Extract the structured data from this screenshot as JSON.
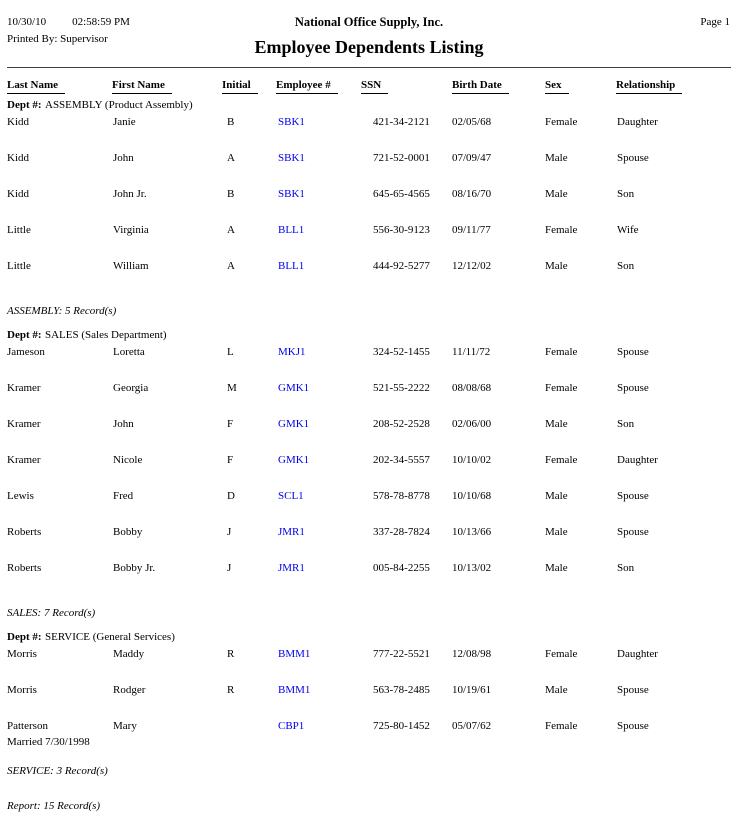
{
  "report_header": {
    "date": "10/30/10",
    "time": "02:58:59 PM",
    "company": "National Office Supply, Inc.",
    "page_label": "Page 1",
    "printed_by_label": "Printed By:",
    "printed_by_value": "Supervisor",
    "title": "Employee Dependents Listing"
  },
  "columns": [
    "Last Name",
    "First Name",
    "Initial",
    "Employee #",
    "SSN",
    "Birth Date",
    "Sex",
    "Relationship"
  ],
  "dept_label": "Dept #:",
  "groups": [
    {
      "dept_name": "ASSEMBLY (Product Assembly)",
      "summary": "ASSEMBLY: 5 Record(s)",
      "rows": [
        {
          "last_name": "Kidd",
          "first_name": "Janie",
          "initial": "B",
          "employee_no": "SBK1",
          "ssn": "421-34-2121",
          "birth_date": "02/05/68",
          "sex": "Female",
          "relationship": "Daughter"
        },
        {
          "last_name": "Kidd",
          "first_name": "John",
          "initial": "A",
          "employee_no": "SBK1",
          "ssn": "721-52-0001",
          "birth_date": "07/09/47",
          "sex": "Male",
          "relationship": "Spouse"
        },
        {
          "last_name": "Kidd",
          "first_name": "John Jr.",
          "initial": "B",
          "employee_no": "SBK1",
          "ssn": "645-65-4565",
          "birth_date": "08/16/70",
          "sex": "Male",
          "relationship": "Son"
        },
        {
          "last_name": "Little",
          "first_name": "Virginia",
          "initial": "A",
          "employee_no": "BLL1",
          "ssn": "556-30-9123",
          "birth_date": "09/11/77",
          "sex": "Female",
          "relationship": "Wife"
        },
        {
          "last_name": "Little",
          "first_name": "William",
          "initial": "A",
          "employee_no": "BLL1",
          "ssn": "444-92-5277",
          "birth_date": "12/12/02",
          "sex": "Male",
          "relationship": "Son"
        }
      ]
    },
    {
      "dept_name": "SALES (Sales Department)",
      "summary": "SALES: 7 Record(s)",
      "rows": [
        {
          "last_name": "Jameson",
          "first_name": "Loretta",
          "initial": "L",
          "employee_no": "MKJ1",
          "ssn": "324-52-1455",
          "birth_date": "11/11/72",
          "sex": "Female",
          "relationship": "Spouse"
        },
        {
          "last_name": "Kramer",
          "first_name": "Georgia",
          "initial": "M",
          "employee_no": "GMK1",
          "ssn": "521-55-2222",
          "birth_date": "08/08/68",
          "sex": "Female",
          "relationship": "Spouse"
        },
        {
          "last_name": "Kramer",
          "first_name": "John",
          "initial": "F",
          "employee_no": "GMK1",
          "ssn": "208-52-2528",
          "birth_date": "02/06/00",
          "sex": "Male",
          "relationship": "Son"
        },
        {
          "last_name": "Kramer",
          "first_name": "Nicole",
          "initial": "F",
          "employee_no": "GMK1",
          "ssn": "202-34-5557",
          "birth_date": "10/10/02",
          "sex": "Female",
          "relationship": "Daughter"
        },
        {
          "last_name": "Lewis",
          "first_name": "Fred",
          "initial": "D",
          "employee_no": "SCL1",
          "ssn": "578-78-8778",
          "birth_date": "10/10/68",
          "sex": "Male",
          "relationship": "Spouse"
        },
        {
          "last_name": "Roberts",
          "first_name": "Bobby",
          "initial": "J",
          "employee_no": "JMR1",
          "ssn": "337-28-7824",
          "birth_date": "10/13/66",
          "sex": "Male",
          "relationship": "Spouse"
        },
        {
          "last_name": "Roberts",
          "first_name": "Bobby Jr.",
          "initial": "J",
          "employee_no": "JMR1",
          "ssn": "005-84-2255",
          "birth_date": "10/13/02",
          "sex": "Male",
          "relationship": "Son"
        }
      ]
    },
    {
      "dept_name": "SERVICE (General Services)",
      "summary": "SERVICE: 3 Record(s)",
      "rows": [
        {
          "last_name": "Morris",
          "first_name": "Maddy",
          "initial": "R",
          "employee_no": "BMM1",
          "ssn": "777-22-5521",
          "birth_date": "12/08/98",
          "sex": "Female",
          "relationship": "Daughter"
        },
        {
          "last_name": "Morris",
          "first_name": "Rodger",
          "initial": "R",
          "employee_no": "BMM1",
          "ssn": "563-78-2485",
          "birth_date": "10/19/61",
          "sex": "Male",
          "relationship": "Spouse"
        },
        {
          "last_name": "Patterson",
          "first_name": "Mary",
          "initial": "",
          "employee_no": "CBP1",
          "ssn": "725-80-1452",
          "birth_date": "05/07/62",
          "sex": "Female",
          "relationship": "Spouse",
          "note": "Married 7/30/1998"
        }
      ]
    }
  ],
  "report_summary": "Report: 15 Record(s)",
  "colors": {
    "link": "#0000ee",
    "text": "#000000",
    "rule": "#404040"
  }
}
